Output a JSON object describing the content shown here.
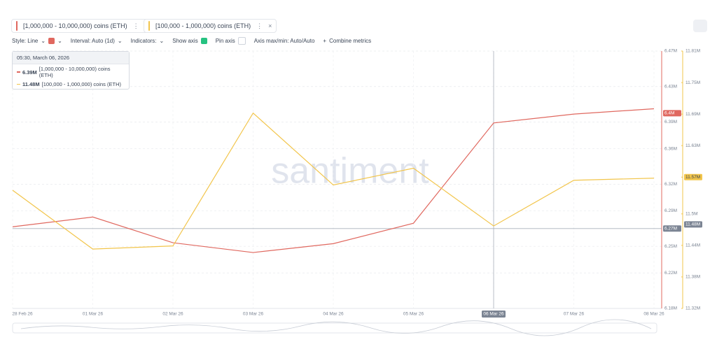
{
  "toolbar": {
    "style": "Style: Line",
    "interval": "Interval: Auto (1d)",
    "indicators": "Indicators:",
    "show_axis": "Show axis",
    "pin_axis": "Pin axis",
    "axis_minmax": "Axis max/min: Auto/Auto",
    "combine": "Combine metrics"
  },
  "tooltip": {
    "date": "05:30, March 06, 2026",
    "values": [
      "6.39M",
      "11.48M"
    ]
  },
  "chart_data": {
    "type": "line",
    "watermark": "santiment",
    "categories": [
      "28 Feb 26",
      "01 Mar 26",
      "02 Mar 26",
      "03 Mar 26",
      "04 Mar 26",
      "05 Mar 26",
      "06 Mar 26",
      "07 Mar 26",
      "08 Mar 26"
    ],
    "series": [
      {
        "name": "[1,000,000 - 10,000,000) coins (ETH)",
        "color": "#e0685f",
        "axis": "y",
        "values": [
          6.272,
          6.283,
          6.254,
          6.243,
          6.253,
          6.276,
          6.389,
          6.399,
          6.405
        ]
      },
      {
        "name": "[100,000 - 1,000,000) coins (ETH)",
        "color": "#f2c54b",
        "axis": "y2",
        "values": [
          11.545,
          11.433,
          11.439,
          11.692,
          11.555,
          11.587,
          11.477,
          11.564,
          11.568
        ]
      }
    ],
    "ylim": [
      6.18,
      6.47
    ],
    "yticks": [
      {
        "value": 6.47,
        "label": "6.47M"
      },
      {
        "value": 6.43,
        "label": "6.43M"
      },
      {
        "value": 6.39,
        "label": "6.39M"
      },
      {
        "value": 6.36,
        "label": "6.36M"
      },
      {
        "value": 6.32,
        "label": "6.32M"
      },
      {
        "value": 6.29,
        "label": "6.29M"
      },
      {
        "value": 6.25,
        "label": "6.25M"
      },
      {
        "value": 6.22,
        "label": "6.22M"
      },
      {
        "value": 6.18,
        "label": "6.18M"
      }
    ],
    "y2lim": [
      11.32,
      11.81
    ],
    "y2ticks": [
      {
        "value": 11.81,
        "label": "11.81M"
      },
      {
        "value": 11.75,
        "label": "11.75M"
      },
      {
        "value": 11.69,
        "label": "11.69M"
      },
      {
        "value": 11.63,
        "label": "11.63M"
      },
      {
        "value": 11.57,
        "label": "11.57M"
      },
      {
        "value": 11.5,
        "label": "11.5M"
      },
      {
        "value": 11.44,
        "label": "11.44M"
      },
      {
        "value": 11.38,
        "label": "11.38M"
      },
      {
        "value": 11.32,
        "label": "11.32M"
      }
    ],
    "grid": true,
    "last_value_labels": [
      {
        "value": 6.4,
        "label": "6.4M"
      },
      {
        "value": 11.57,
        "label": "11.57M"
      }
    ],
    "crosshair": {
      "x": 6,
      "y": {
        "value": 6.27,
        "label": "6.27M"
      },
      "y2": {
        "value": 11.48,
        "label": "11.48M"
      }
    }
  }
}
